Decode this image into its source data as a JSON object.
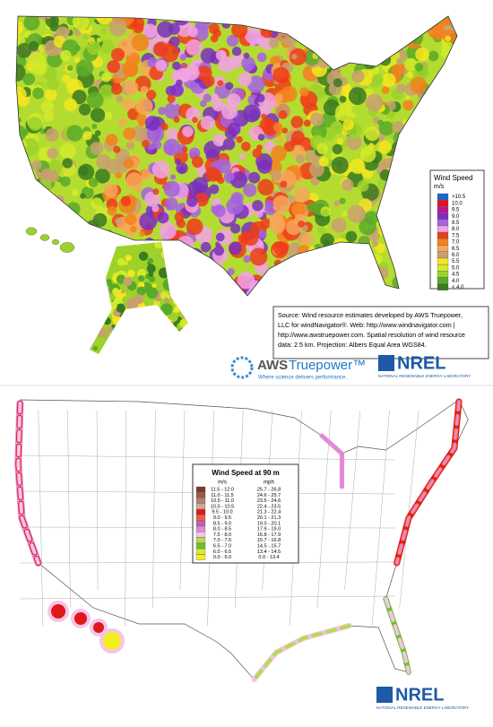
{
  "top_map": {
    "legend": {
      "title": "Wind Speed",
      "unit": "m/s",
      "items": [
        {
          "label": ">10.5",
          "color": "#1e63d6"
        },
        {
          "label": "10.0",
          "color": "#e0141e"
        },
        {
          "label": "9.5",
          "color": "#c0168a"
        },
        {
          "label": "9.0",
          "color": "#7a2fc0"
        },
        {
          "label": "8.5",
          "color": "#a662e0"
        },
        {
          "label": "8.0",
          "color": "#f2a2e4"
        },
        {
          "label": "7.5",
          "color": "#ee3c1a"
        },
        {
          "label": "7.0",
          "color": "#f5801e"
        },
        {
          "label": "6.5",
          "color": "#f7a65a"
        },
        {
          "label": "6.0",
          "color": "#c8a070"
        },
        {
          "label": "5.5",
          "color": "#f5e61e"
        },
        {
          "label": "5.0",
          "color": "#d2ea2a"
        },
        {
          "label": "4.5",
          "color": "#9cd22a"
        },
        {
          "label": "4.0",
          "color": "#5aaa2a"
        },
        {
          "label": "< 4.0",
          "color": "#3a7a20"
        }
      ]
    },
    "source": [
      "Source: Wind resource estimates developed by AWS Truepower,",
      "LLC for windNavigator®. Web: http://www.windnavigator.com |",
      "http://www.awstruepower.com. Spatial resolution of wind resource",
      "data: 2.5 km. Projection: Albers Equal Area WGS84."
    ],
    "logo": {
      "brand_a": "AWS",
      "brand_b": "Truepower™",
      "tagline": "Where science delivers performance."
    },
    "nrel": {
      "name": "NREL",
      "subtitle": "NATIONAL RENEWABLE ENERGY LABORATORY"
    }
  },
  "bottom_map": {
    "legend": {
      "title": "Wind Speed at 90 m",
      "columns": [
        "m/s",
        "mph"
      ],
      "rows": [
        {
          "ms": "11.5 - 12.0",
          "mph": "25.7 - 26.8",
          "color": "#7a3a2a"
        },
        {
          "ms": "11.0 - 11.5",
          "mph": "24.6 - 25.7",
          "color": "#9a5a48"
        },
        {
          "ms": "10.5 - 11.0",
          "mph": "23.5 - 24.6",
          "color": "#b88070"
        },
        {
          "ms": "10.0 - 10.5",
          "mph": "22.4 - 23.5",
          "color": "#d4a898"
        },
        {
          "ms": "9.5 - 10.0",
          "mph": "21.3 - 22.4",
          "color": "#e01818"
        },
        {
          "ms": "9.0 - 9.5",
          "mph": "20.1 - 21.3",
          "color": "#f06030"
        },
        {
          "ms": "8.5 - 9.0",
          "mph": "19.0 - 20.1",
          "color": "#c85ab8"
        },
        {
          "ms": "8.0 - 8.5",
          "mph": "17.9 - 19.0",
          "color": "#e48ad4"
        },
        {
          "ms": "7.5 - 8.0",
          "mph": "16.8 - 17.9",
          "color": "#f4c4ec"
        },
        {
          "ms": "7.0 - 7.5",
          "mph": "15.7 - 16.8",
          "color": "#b4dc50"
        },
        {
          "ms": "6.5 - 7.0",
          "mph": "14.5 - 15.7",
          "color": "#70c030"
        },
        {
          "ms": "6.0 - 6.5",
          "mph": "13.4 - 14.5",
          "color": "#d8ec30"
        },
        {
          "ms": "0.0 - 6.0",
          "mph": "0.0 - 13.4",
          "color": "#f4f020"
        }
      ]
    },
    "nrel": {
      "name": "NREL",
      "subtitle": "NATIONAL RENEWABLE ENERGY LABORATORY"
    }
  }
}
